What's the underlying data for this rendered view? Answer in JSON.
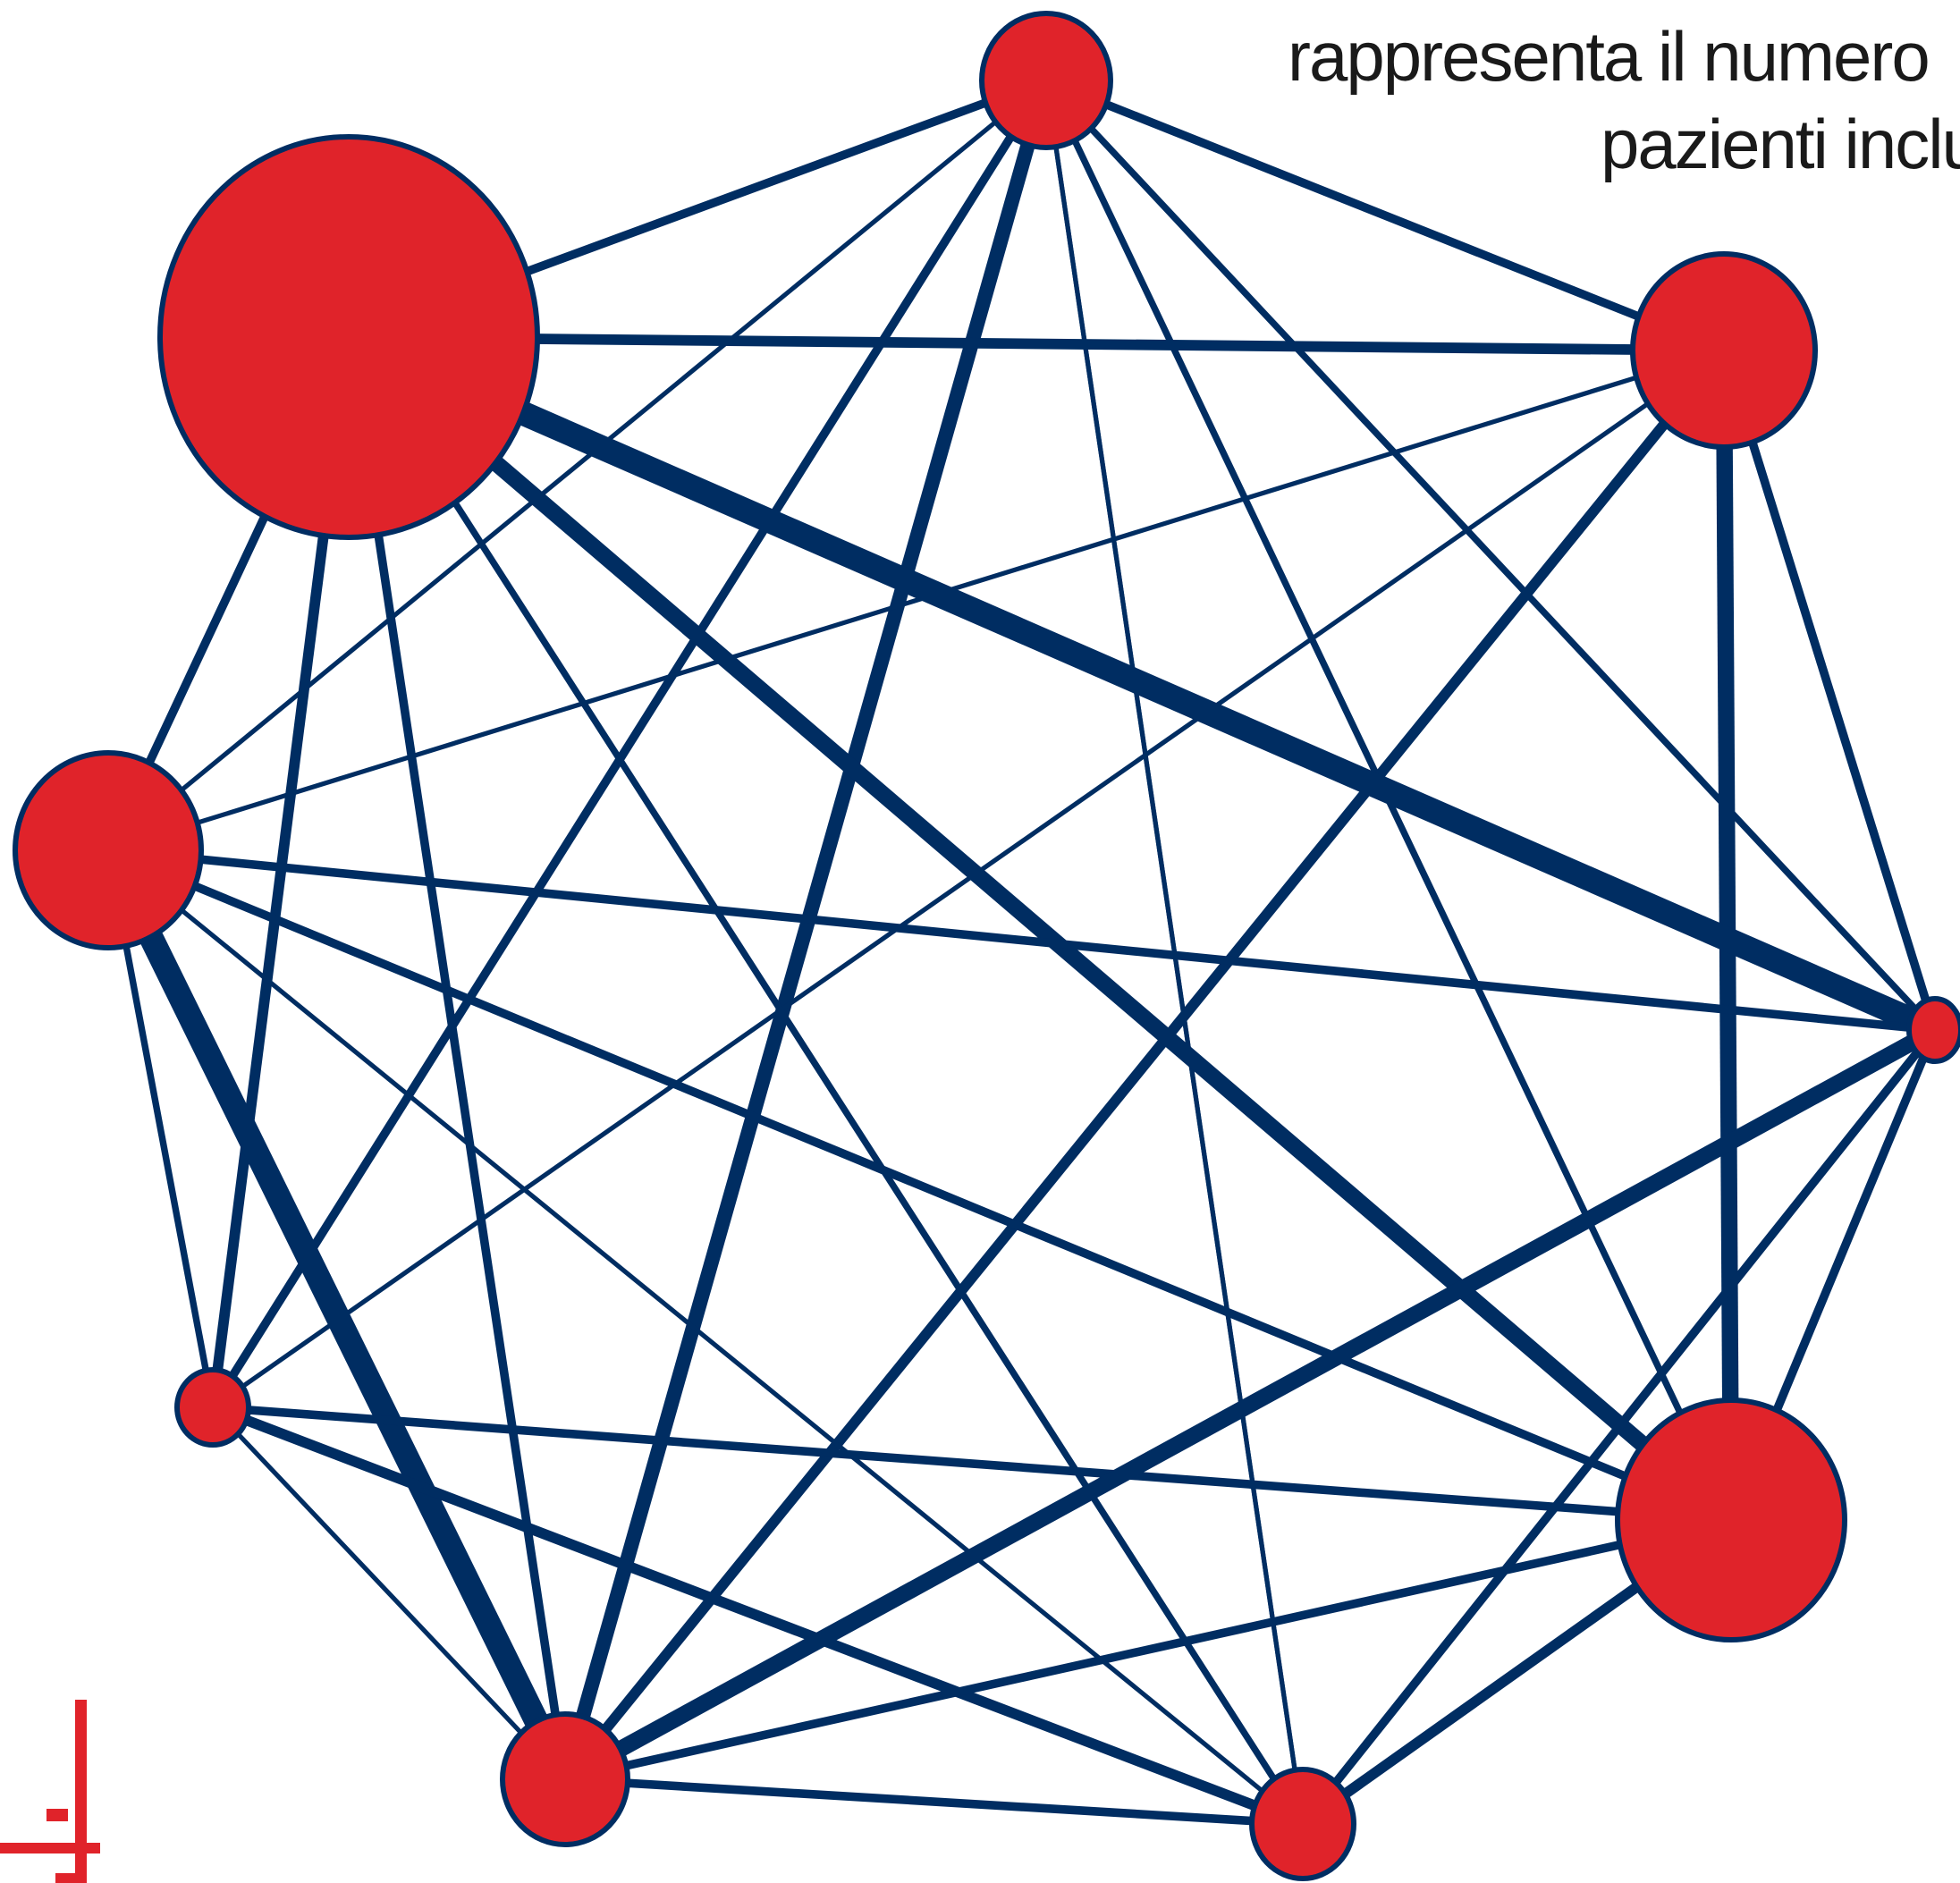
{
  "caption": {
    "line1": "rappresenta il numero",
    "line2": "pazienti inclu"
  },
  "colors": {
    "node_fill": "#e0232a",
    "node_stroke": "#002d62",
    "edge": "#002d62",
    "logo": "#e0232a"
  },
  "nodes": [
    {
      "id": "A",
      "relative_size": 0.49
    },
    {
      "id": "B",
      "relative_size": 0.23
    },
    {
      "id": "C",
      "relative_size": 1.0
    },
    {
      "id": "D",
      "relative_size": 0.17
    },
    {
      "id": "E",
      "relative_size": 0.1
    },
    {
      "id": "F",
      "relative_size": 0.5
    },
    {
      "id": "G",
      "relative_size": 0.07
    },
    {
      "id": "H",
      "relative_size": 0.62
    },
    {
      "id": "I",
      "relative_size": 0.33
    },
    {
      "id": "J",
      "relative_size": 0.19
    }
  ],
  "edges": [
    {
      "from": "A",
      "to": "B",
      "weight": 3
    },
    {
      "from": "A",
      "to": "C",
      "weight": 3
    },
    {
      "from": "A",
      "to": "D",
      "weight": 1
    },
    {
      "from": "A",
      "to": "E",
      "weight": 3
    },
    {
      "from": "A",
      "to": "F",
      "weight": 2
    },
    {
      "from": "A",
      "to": "G",
      "weight": 6
    },
    {
      "from": "A",
      "to": "H",
      "weight": 2
    },
    {
      "from": "A",
      "to": "I",
      "weight": 1
    },
    {
      "from": "A",
      "to": "J",
      "weight": 1
    },
    {
      "from": "B",
      "to": "C",
      "weight": 4
    },
    {
      "from": "B",
      "to": "D",
      "weight": 1
    },
    {
      "from": "B",
      "to": "E",
      "weight": 1
    },
    {
      "from": "B",
      "to": "F",
      "weight": 7
    },
    {
      "from": "B",
      "to": "G",
      "weight": 4
    },
    {
      "from": "B",
      "to": "H",
      "weight": 3
    },
    {
      "from": "C",
      "to": "D",
      "weight": 3
    },
    {
      "from": "C",
      "to": "E",
      "weight": 4
    },
    {
      "from": "C",
      "to": "F",
      "weight": 7
    },
    {
      "from": "C",
      "to": "G",
      "weight": 3
    },
    {
      "from": "C",
      "to": "H",
      "weight": 11
    },
    {
      "from": "C",
      "to": "I",
      "weight": 1
    },
    {
      "from": "C",
      "to": "J",
      "weight": 2
    },
    {
      "from": "D",
      "to": "E",
      "weight": 2
    },
    {
      "from": "D",
      "to": "F",
      "weight": 3
    },
    {
      "from": "D",
      "to": "G",
      "weight": 11
    },
    {
      "from": "D",
      "to": "H",
      "weight": 3
    },
    {
      "from": "D",
      "to": "I",
      "weight": 1
    },
    {
      "from": "E",
      "to": "F",
      "weight": 3
    },
    {
      "from": "E",
      "to": "G",
      "weight": 1
    },
    {
      "from": "E",
      "to": "I",
      "weight": 4
    },
    {
      "from": "F",
      "to": "G",
      "weight": 3
    },
    {
      "from": "F",
      "to": "H",
      "weight": 3
    },
    {
      "from": "F",
      "to": "J",
      "weight": 4
    },
    {
      "from": "G",
      "to": "H",
      "weight": 7
    },
    {
      "from": "G",
      "to": "I",
      "weight": 2
    },
    {
      "from": "G",
      "to": "J",
      "weight": 3
    },
    {
      "from": "H",
      "to": "J",
      "weight": 3
    }
  ]
}
